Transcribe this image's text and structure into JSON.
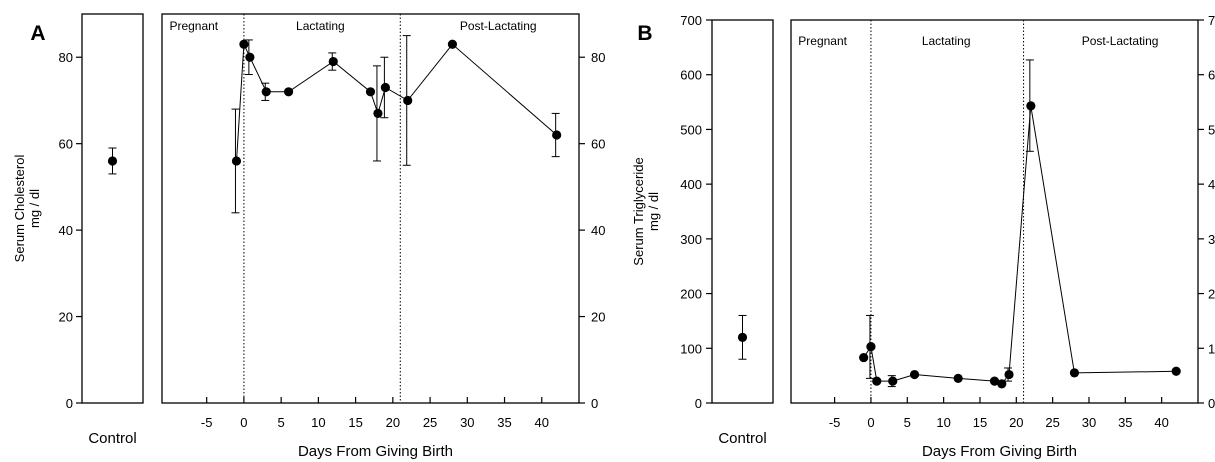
{
  "chart_data": [
    {
      "type": "scatter",
      "panel": "A",
      "ylabel": "Serum Cholesterol\nmg / dl",
      "ylim": [
        0,
        90
      ],
      "yticks": [
        0,
        20,
        40,
        60,
        80
      ],
      "control": {
        "label": "Control",
        "value": 56,
        "err_low": 53,
        "err_high": 59
      },
      "main": {
        "xlabel": "Days From Giving Birth",
        "xlim": [
          -11,
          45
        ],
        "xticks": [
          -5,
          0,
          5,
          10,
          15,
          20,
          25,
          30,
          35,
          40
        ],
        "phases": [
          {
            "label": "Pregnant",
            "at": -10
          },
          {
            "label": "Lactating",
            "at": 7
          },
          {
            "label": "Post-Lactating",
            "at": 29
          }
        ],
        "dividers": [
          0,
          21
        ],
        "points": [
          {
            "x": -1,
            "y": 56,
            "lo": 44,
            "hi": 68
          },
          {
            "x": 0,
            "y": 83,
            "lo": 83,
            "hi": 83
          },
          {
            "x": 0.8,
            "y": 80,
            "lo": 76,
            "hi": 84
          },
          {
            "x": 3,
            "y": 72,
            "lo": 70,
            "hi": 74
          },
          {
            "x": 6,
            "y": 72,
            "lo": 72,
            "hi": 72
          },
          {
            "x": 12,
            "y": 79,
            "lo": 77,
            "hi": 81
          },
          {
            "x": 17,
            "y": 72,
            "lo": 72,
            "hi": 72
          },
          {
            "x": 18,
            "y": 67,
            "lo": 56,
            "hi": 78
          },
          {
            "x": 19,
            "y": 73,
            "lo": 66,
            "hi": 80
          },
          {
            "x": 22,
            "y": 70,
            "lo": 55,
            "hi": 85
          },
          {
            "x": 28,
            "y": 83,
            "lo": 83,
            "hi": 83
          },
          {
            "x": 42,
            "y": 62,
            "lo": 57,
            "hi": 67
          }
        ]
      }
    },
    {
      "type": "scatter",
      "panel": "B",
      "ylabel": "Serum Triglyceride\nmg / dl",
      "ylim": [
        0,
        700
      ],
      "yticks": [
        0,
        100,
        200,
        300,
        400,
        500,
        600,
        700
      ],
      "control": {
        "label": "Control",
        "value": 120,
        "err_low": 80,
        "err_high": 160
      },
      "main": {
        "xlabel": "Days From Giving Birth",
        "xlim": [
          -11,
          45
        ],
        "xticks": [
          -5,
          0,
          5,
          10,
          15,
          20,
          25,
          30,
          35,
          40
        ],
        "phases": [
          {
            "label": "Pregnant",
            "at": -10
          },
          {
            "label": "Lactating",
            "at": 7
          },
          {
            "label": "Post-Lactating",
            "at": 29
          }
        ],
        "dividers": [
          0,
          21
        ],
        "points": [
          {
            "x": -1,
            "y": 83,
            "lo": 83,
            "hi": 83
          },
          {
            "x": 0,
            "y": 103,
            "lo": 45,
            "hi": 160
          },
          {
            "x": 0.8,
            "y": 40,
            "lo": 40,
            "hi": 40
          },
          {
            "x": 3,
            "y": 40,
            "lo": 30,
            "hi": 50
          },
          {
            "x": 6,
            "y": 52,
            "lo": 52,
            "hi": 52
          },
          {
            "x": 12,
            "y": 45,
            "lo": 45,
            "hi": 45
          },
          {
            "x": 17,
            "y": 40,
            "lo": 40,
            "hi": 40
          },
          {
            "x": 18,
            "y": 35,
            "lo": 35,
            "hi": 35
          },
          {
            "x": 19,
            "y": 52,
            "lo": 40,
            "hi": 64
          },
          {
            "x": 22,
            "y": 543,
            "lo": 460,
            "hi": 627
          },
          {
            "x": 28,
            "y": 55,
            "lo": 55,
            "hi": 55
          },
          {
            "x": 42,
            "y": 58,
            "lo": 58,
            "hi": 58
          }
        ]
      }
    }
  ]
}
